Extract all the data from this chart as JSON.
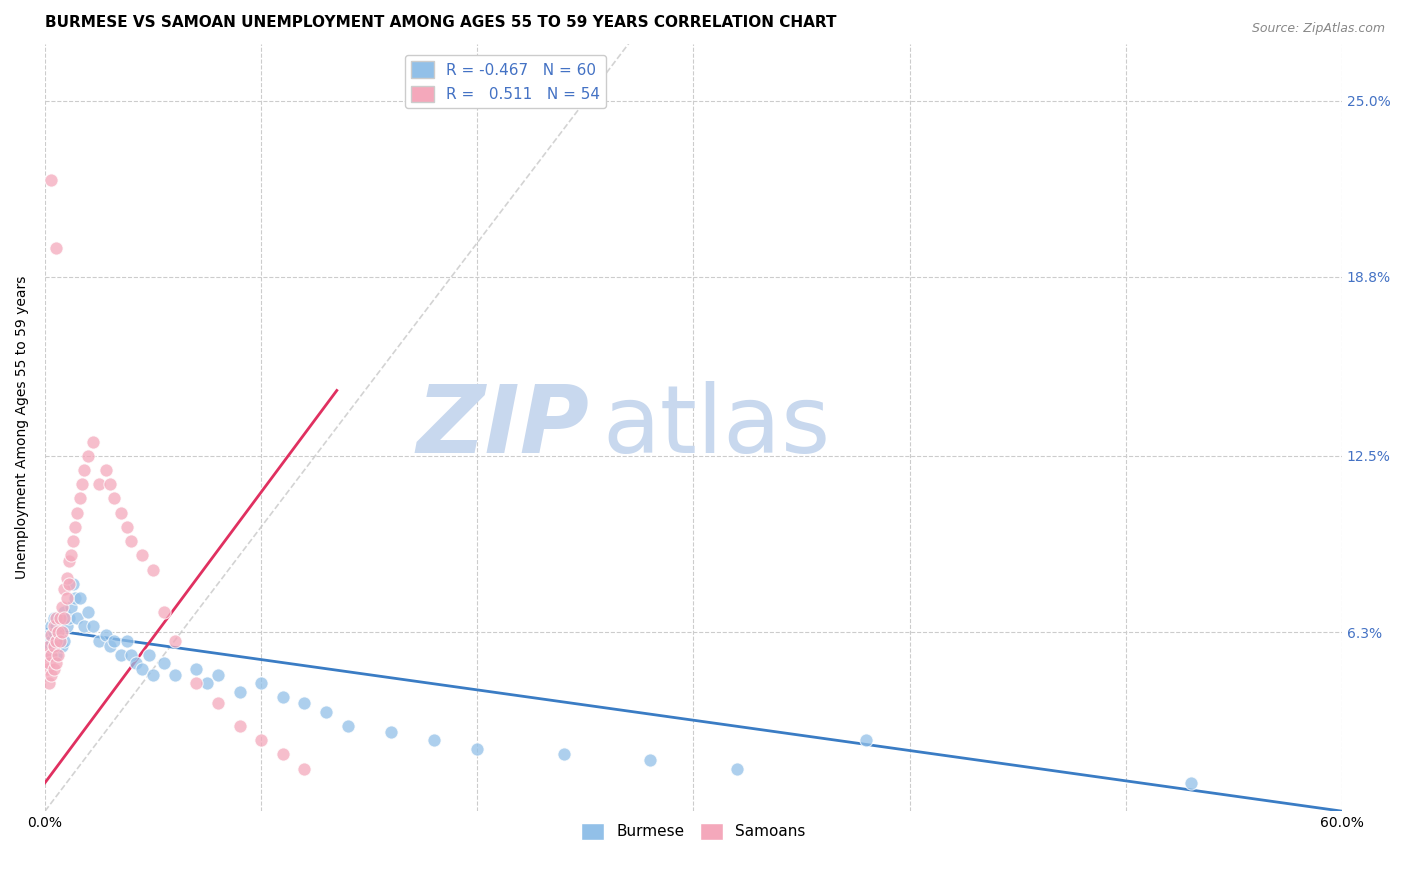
{
  "title": "BURMESE VS SAMOAN UNEMPLOYMENT AMONG AGES 55 TO 59 YEARS CORRELATION CHART",
  "source": "Source: ZipAtlas.com",
  "ylabel": "Unemployment Among Ages 55 to 59 years",
  "xlim": [
    0.0,
    0.6
  ],
  "ylim": [
    0.0,
    0.27
  ],
  "ytick_labels": [
    "6.3%",
    "12.5%",
    "18.8%",
    "25.0%"
  ],
  "ytick_positions": [
    0.063,
    0.125,
    0.188,
    0.25
  ],
  "grid_color": "#cccccc",
  "background_color": "#ffffff",
  "watermark_zip": "ZIP",
  "watermark_atlas": "atlas",
  "watermark_color_zip": "#c8d8ee",
  "watermark_color_atlas": "#c8d8ee",
  "legend_r_burmese": "-0.467",
  "legend_n_burmese": "60",
  "legend_r_samoan": "0.511",
  "legend_n_samoan": "54",
  "burmese_color": "#92c0e8",
  "samoan_color": "#f4a8bb",
  "burmese_line_color": "#3a7cc4",
  "samoan_line_color": "#e03060",
  "diagonal_color": "#c8c8c8",
  "burmese_x": [
    0.001,
    0.002,
    0.002,
    0.003,
    0.003,
    0.003,
    0.004,
    0.004,
    0.004,
    0.005,
    0.005,
    0.005,
    0.006,
    0.006,
    0.007,
    0.007,
    0.008,
    0.008,
    0.009,
    0.009,
    0.01,
    0.011,
    0.012,
    0.013,
    0.014,
    0.015,
    0.016,
    0.018,
    0.02,
    0.022,
    0.025,
    0.028,
    0.03,
    0.032,
    0.035,
    0.038,
    0.04,
    0.042,
    0.045,
    0.048,
    0.05,
    0.055,
    0.06,
    0.07,
    0.075,
    0.08,
    0.09,
    0.1,
    0.11,
    0.12,
    0.13,
    0.14,
    0.16,
    0.18,
    0.2,
    0.24,
    0.28,
    0.32,
    0.38,
    0.53
  ],
  "burmese_y": [
    0.06,
    0.058,
    0.062,
    0.055,
    0.06,
    0.065,
    0.058,
    0.063,
    0.068,
    0.055,
    0.06,
    0.065,
    0.058,
    0.063,
    0.06,
    0.065,
    0.058,
    0.068,
    0.06,
    0.07,
    0.065,
    0.068,
    0.072,
    0.08,
    0.075,
    0.068,
    0.075,
    0.065,
    0.07,
    0.065,
    0.06,
    0.062,
    0.058,
    0.06,
    0.055,
    0.06,
    0.055,
    0.052,
    0.05,
    0.055,
    0.048,
    0.052,
    0.048,
    0.05,
    0.045,
    0.048,
    0.042,
    0.045,
    0.04,
    0.038,
    0.035,
    0.03,
    0.028,
    0.025,
    0.022,
    0.02,
    0.018,
    0.015,
    0.025,
    0.01
  ],
  "samoan_x": [
    0.001,
    0.001,
    0.002,
    0.002,
    0.002,
    0.003,
    0.003,
    0.003,
    0.004,
    0.004,
    0.004,
    0.005,
    0.005,
    0.005,
    0.006,
    0.006,
    0.007,
    0.007,
    0.008,
    0.008,
    0.009,
    0.009,
    0.01,
    0.01,
    0.011,
    0.011,
    0.012,
    0.013,
    0.014,
    0.015,
    0.016,
    0.017,
    0.018,
    0.02,
    0.022,
    0.025,
    0.028,
    0.03,
    0.032,
    0.035,
    0.038,
    0.04,
    0.045,
    0.05,
    0.055,
    0.06,
    0.07,
    0.08,
    0.09,
    0.1,
    0.11,
    0.12,
    0.003,
    0.005
  ],
  "samoan_y": [
    0.05,
    0.055,
    0.045,
    0.052,
    0.058,
    0.048,
    0.055,
    0.062,
    0.05,
    0.058,
    0.065,
    0.052,
    0.06,
    0.068,
    0.055,
    0.063,
    0.06,
    0.068,
    0.063,
    0.072,
    0.068,
    0.078,
    0.075,
    0.082,
    0.08,
    0.088,
    0.09,
    0.095,
    0.1,
    0.105,
    0.11,
    0.115,
    0.12,
    0.125,
    0.13,
    0.115,
    0.12,
    0.115,
    0.11,
    0.105,
    0.1,
    0.095,
    0.09,
    0.085,
    0.07,
    0.06,
    0.045,
    0.038,
    0.03,
    0.025,
    0.02,
    0.015,
    0.222,
    0.198
  ],
  "burmese_line_x": [
    0.0,
    0.6
  ],
  "burmese_line_y": [
    0.064,
    0.0
  ],
  "samoan_line_x": [
    0.0,
    0.135
  ],
  "samoan_line_y": [
    0.01,
    0.148
  ],
  "title_fontsize": 11,
  "source_fontsize": 9,
  "axis_label_fontsize": 10,
  "tick_fontsize": 10,
  "legend_fontsize": 11
}
